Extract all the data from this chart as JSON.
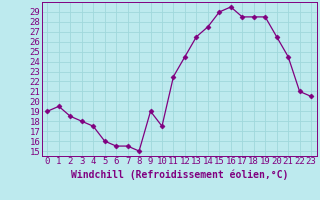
{
  "x": [
    0,
    1,
    2,
    3,
    4,
    5,
    6,
    7,
    8,
    9,
    10,
    11,
    12,
    13,
    14,
    15,
    16,
    17,
    18,
    19,
    20,
    21,
    22,
    23
  ],
  "y": [
    19.0,
    19.5,
    18.5,
    18.0,
    17.5,
    16.0,
    15.5,
    15.5,
    15.0,
    19.0,
    17.5,
    22.5,
    24.5,
    26.5,
    27.5,
    29.0,
    29.5,
    28.5,
    28.5,
    28.5,
    26.5,
    24.5,
    21.0,
    20.5
  ],
  "color": "#800080",
  "marker": "D",
  "markersize": 2.5,
  "linewidth": 0.9,
  "xlabel": "Windchill (Refroidissement éolien,°C)",
  "xlim": [
    -0.5,
    23.5
  ],
  "ylim": [
    14.5,
    30.0
  ],
  "yticks": [
    15,
    16,
    17,
    18,
    19,
    20,
    21,
    22,
    23,
    24,
    25,
    26,
    27,
    28,
    29
  ],
  "xticks": [
    0,
    1,
    2,
    3,
    4,
    5,
    6,
    7,
    8,
    9,
    10,
    11,
    12,
    13,
    14,
    15,
    16,
    17,
    18,
    19,
    20,
    21,
    22,
    23
  ],
  "bg_color": "#bdeaee",
  "grid_color": "#a0d8dc",
  "tick_color": "#800080",
  "label_color": "#800080",
  "font_size": 6.5,
  "xlabel_fontsize": 7,
  "xlabel_fontweight": "bold"
}
